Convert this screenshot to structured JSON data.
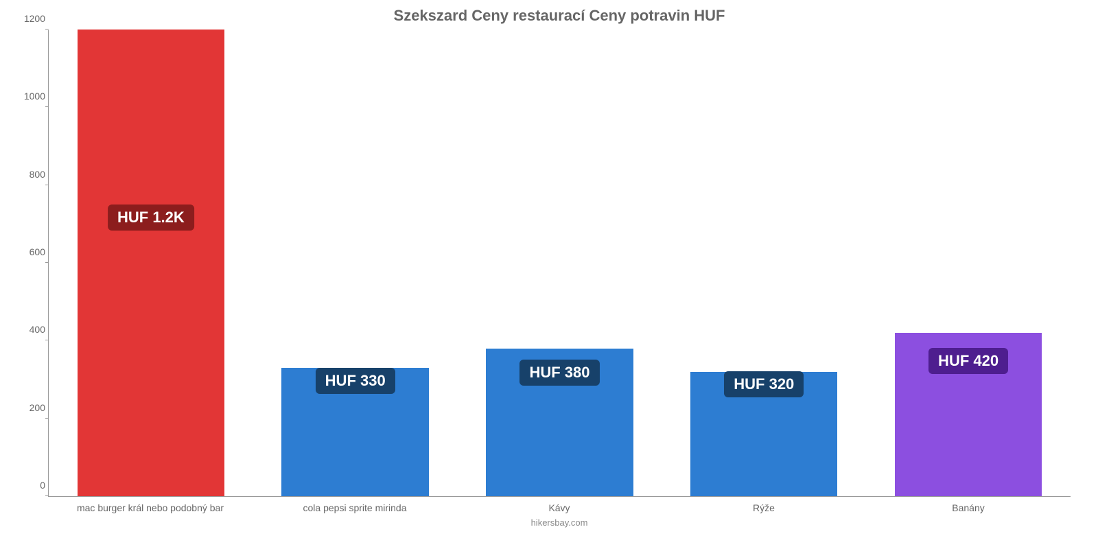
{
  "chart": {
    "type": "bar",
    "title": "Szekszard Ceny restaurací Ceny potravin HUF",
    "title_fontsize": 22,
    "title_color": "#666666",
    "background_color": "#ffffff",
    "axis_color": "#999999",
    "tick_label_color": "#666666",
    "tick_label_fontsize": 14,
    "ylim": [
      0,
      1200
    ],
    "ytick_step": 200,
    "yticks": [
      0,
      200,
      400,
      600,
      800,
      1000,
      1200
    ],
    "bar_width": 0.72,
    "categories": [
      "mac burger král nebo podobný bar",
      "cola pepsi sprite mirinda",
      "Kávy",
      "Rýže",
      "Banány"
    ],
    "values": [
      1200,
      330,
      380,
      320,
      420
    ],
    "value_labels": [
      "HUF 1.2K",
      "HUF 330",
      "HUF 380",
      "HUF 320",
      "HUF 420"
    ],
    "bar_colors": [
      "#e23636",
      "#2d7dd2",
      "#2d7dd2",
      "#2d7dd2",
      "#8c4fe0"
    ],
    "label_bg_colors": [
      "#8c1d1d",
      "#17416a",
      "#17416a",
      "#17416a",
      "#4e1e8f"
    ],
    "label_text_color": "#ffffff",
    "label_fontsize": 22,
    "label_y_positions": [
      650,
      230,
      250,
      220,
      280
    ],
    "credit": "hikersbay.com",
    "credit_color": "#888888",
    "credit_fontsize": 13
  }
}
